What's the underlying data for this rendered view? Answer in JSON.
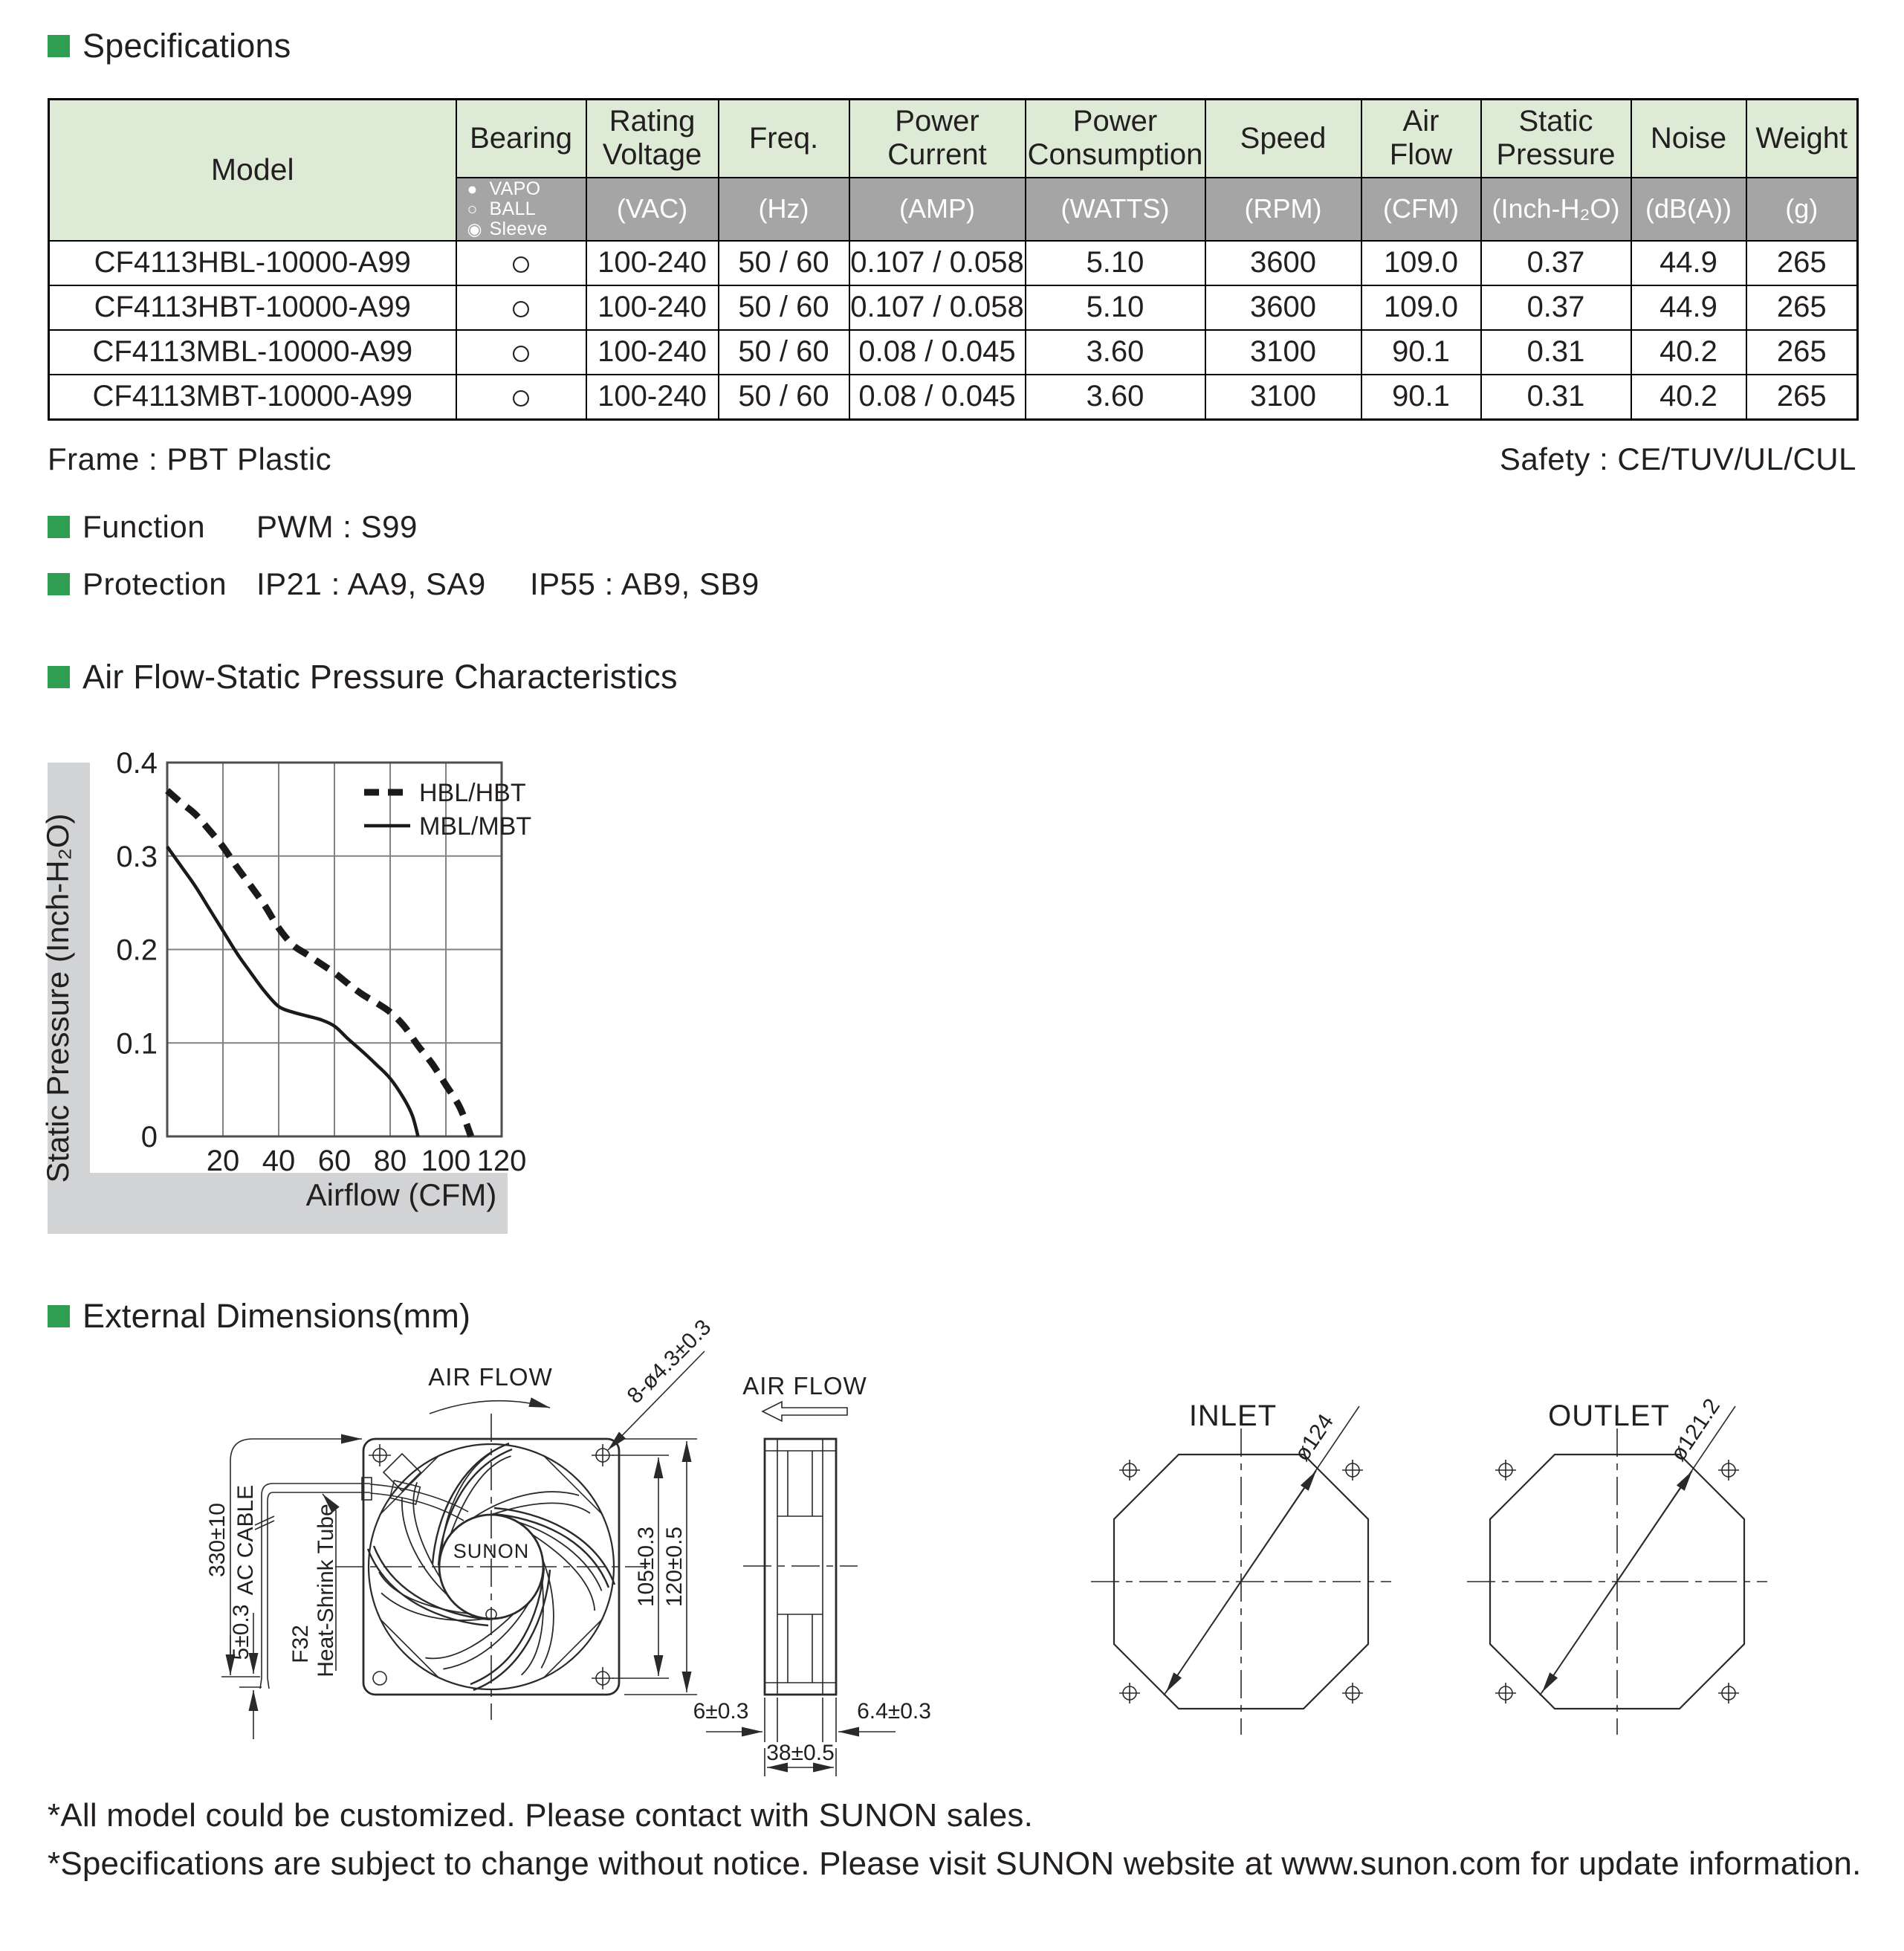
{
  "colors": {
    "accent_green": "#2f9e52",
    "table_header_green": "#dcead6",
    "units_band_gray": "#a6a5a5",
    "axis_strip_gray": "#d2d3d5",
    "text": "#231f20"
  },
  "sections": {
    "specifications": "Specifications",
    "function": {
      "title": "Function",
      "value": "PWM : S99"
    },
    "protection": {
      "title": "Protection",
      "value1": "IP21 : AA9, SA9",
      "value2": "IP55 : AB9, SB9"
    },
    "airflow": "Air Flow-Static Pressure Characteristics",
    "dimensions": "External Dimensions(mm)"
  },
  "spec_table": {
    "model_header": "Model",
    "headers": [
      "Bearing",
      "Rating\nVoltage",
      "Freq.",
      "Power\nCurrent",
      "Power\nConsumption",
      "Speed",
      "Air\nFlow",
      "Static\nPressure",
      "Noise",
      "Weight"
    ],
    "units": [
      "(VAC)",
      "(Hz)",
      "(AMP)",
      "(WATTS)",
      "(RPM)",
      "(CFM)",
      "(Inch-H₂O)",
      "(dB(A))",
      "(g)"
    ],
    "bearing_legend": [
      {
        "symbol": "●",
        "label": "VAPO"
      },
      {
        "symbol": "○",
        "label": "BALL"
      },
      {
        "symbol": "◉",
        "label": "Sleeve"
      }
    ],
    "rows": [
      {
        "model": "CF4113HBL-10000-A99",
        "bearing": "○",
        "voltage": "100-240",
        "freq": "50 / 60",
        "current": "0.107 / 0.058",
        "watts": "5.10",
        "speed": "3600",
        "airflow": "109.0",
        "pressure": "0.37",
        "noise": "44.9",
        "weight": "265"
      },
      {
        "model": "CF4113HBT-10000-A99",
        "bearing": "○",
        "voltage": "100-240",
        "freq": "50 / 60",
        "current": "0.107 / 0.058",
        "watts": "5.10",
        "speed": "3600",
        "airflow": "109.0",
        "pressure": "0.37",
        "noise": "44.9",
        "weight": "265"
      },
      {
        "model": "CF4113MBL-10000-A99",
        "bearing": "○",
        "voltage": "100-240",
        "freq": "50 / 60",
        "current": "0.08 / 0.045",
        "watts": "3.60",
        "speed": "3100",
        "airflow": "90.1",
        "pressure": "0.31",
        "noise": "40.2",
        "weight": "265"
      },
      {
        "model": "CF4113MBT-10000-A99",
        "bearing": "○",
        "voltage": "100-240",
        "freq": "50 / 60",
        "current": "0.08 / 0.045",
        "watts": "3.60",
        "speed": "3100",
        "airflow": "90.1",
        "pressure": "0.31",
        "noise": "40.2",
        "weight": "265"
      }
    ],
    "frame_note": "Frame : PBT Plastic",
    "safety_note": "Safety : CE/TUV/UL/CUL"
  },
  "chart_data": {
    "type": "line",
    "title": "",
    "xlabel": "Airflow (CFM)",
    "ylabel": "Static Pressure (Inch-H₂O)",
    "xlim": [
      0,
      120
    ],
    "ylim": [
      0,
      0.4
    ],
    "xticks": [
      20,
      40,
      60,
      80,
      100,
      120
    ],
    "yticks": [
      0,
      0.1,
      0.2,
      0.3,
      0.4
    ],
    "grid": true,
    "legend_position": "top-right",
    "series": [
      {
        "name": "HBL/HBT",
        "style": "dashed",
        "points": [
          [
            0,
            0.37
          ],
          [
            5,
            0.357
          ],
          [
            10,
            0.345
          ],
          [
            15,
            0.328
          ],
          [
            20,
            0.31
          ],
          [
            25,
            0.288
          ],
          [
            30,
            0.268
          ],
          [
            35,
            0.247
          ],
          [
            40,
            0.223
          ],
          [
            45,
            0.205
          ],
          [
            50,
            0.195
          ],
          [
            55,
            0.185
          ],
          [
            60,
            0.175
          ],
          [
            65,
            0.163
          ],
          [
            70,
            0.152
          ],
          [
            75,
            0.143
          ],
          [
            80,
            0.133
          ],
          [
            85,
            0.118
          ],
          [
            90,
            0.097
          ],
          [
            95,
            0.078
          ],
          [
            100,
            0.055
          ],
          [
            105,
            0.031
          ],
          [
            109,
            0
          ]
        ]
      },
      {
        "name": "MBL/MBT",
        "style": "solid",
        "points": [
          [
            0,
            0.31
          ],
          [
            5,
            0.289
          ],
          [
            10,
            0.268
          ],
          [
            15,
            0.244
          ],
          [
            20,
            0.22
          ],
          [
            25,
            0.196
          ],
          [
            30,
            0.175
          ],
          [
            35,
            0.155
          ],
          [
            40,
            0.139
          ],
          [
            45,
            0.133
          ],
          [
            50,
            0.129
          ],
          [
            55,
            0.125
          ],
          [
            60,
            0.118
          ],
          [
            65,
            0.104
          ],
          [
            70,
            0.091
          ],
          [
            75,
            0.077
          ],
          [
            80,
            0.062
          ],
          [
            85,
            0.04
          ],
          [
            88,
            0.022
          ],
          [
            90,
            0
          ]
        ]
      }
    ]
  },
  "drawings": {
    "front": {
      "airflow": "AIR FLOW",
      "holes": "8-ø4.3±0.3",
      "cable_len": "330±10",
      "cable": "AC CABLE",
      "wire_len": "5±0.3",
      "tube1": "F32",
      "tube2": "Heat-Shrink Tube",
      "hole_pitch": "105±0.3",
      "frame_size": "120±0.5",
      "brand": "SUNON"
    },
    "side": {
      "airflow": "AIR FLOW",
      "left_depth": "6±0.3",
      "right_depth": "6.4±0.3",
      "total_depth": "38±0.5"
    },
    "inlet": {
      "title": "INLET",
      "diameter": "ø124"
    },
    "outlet": {
      "title": "OUTLET",
      "diameter": "ø121.2"
    }
  },
  "footnotes": [
    "*All model could be customized. Please contact with SUNON sales.",
    "*Specifications are subject to change without notice. Please visit SUNON website at www.sunon.com for update information."
  ]
}
